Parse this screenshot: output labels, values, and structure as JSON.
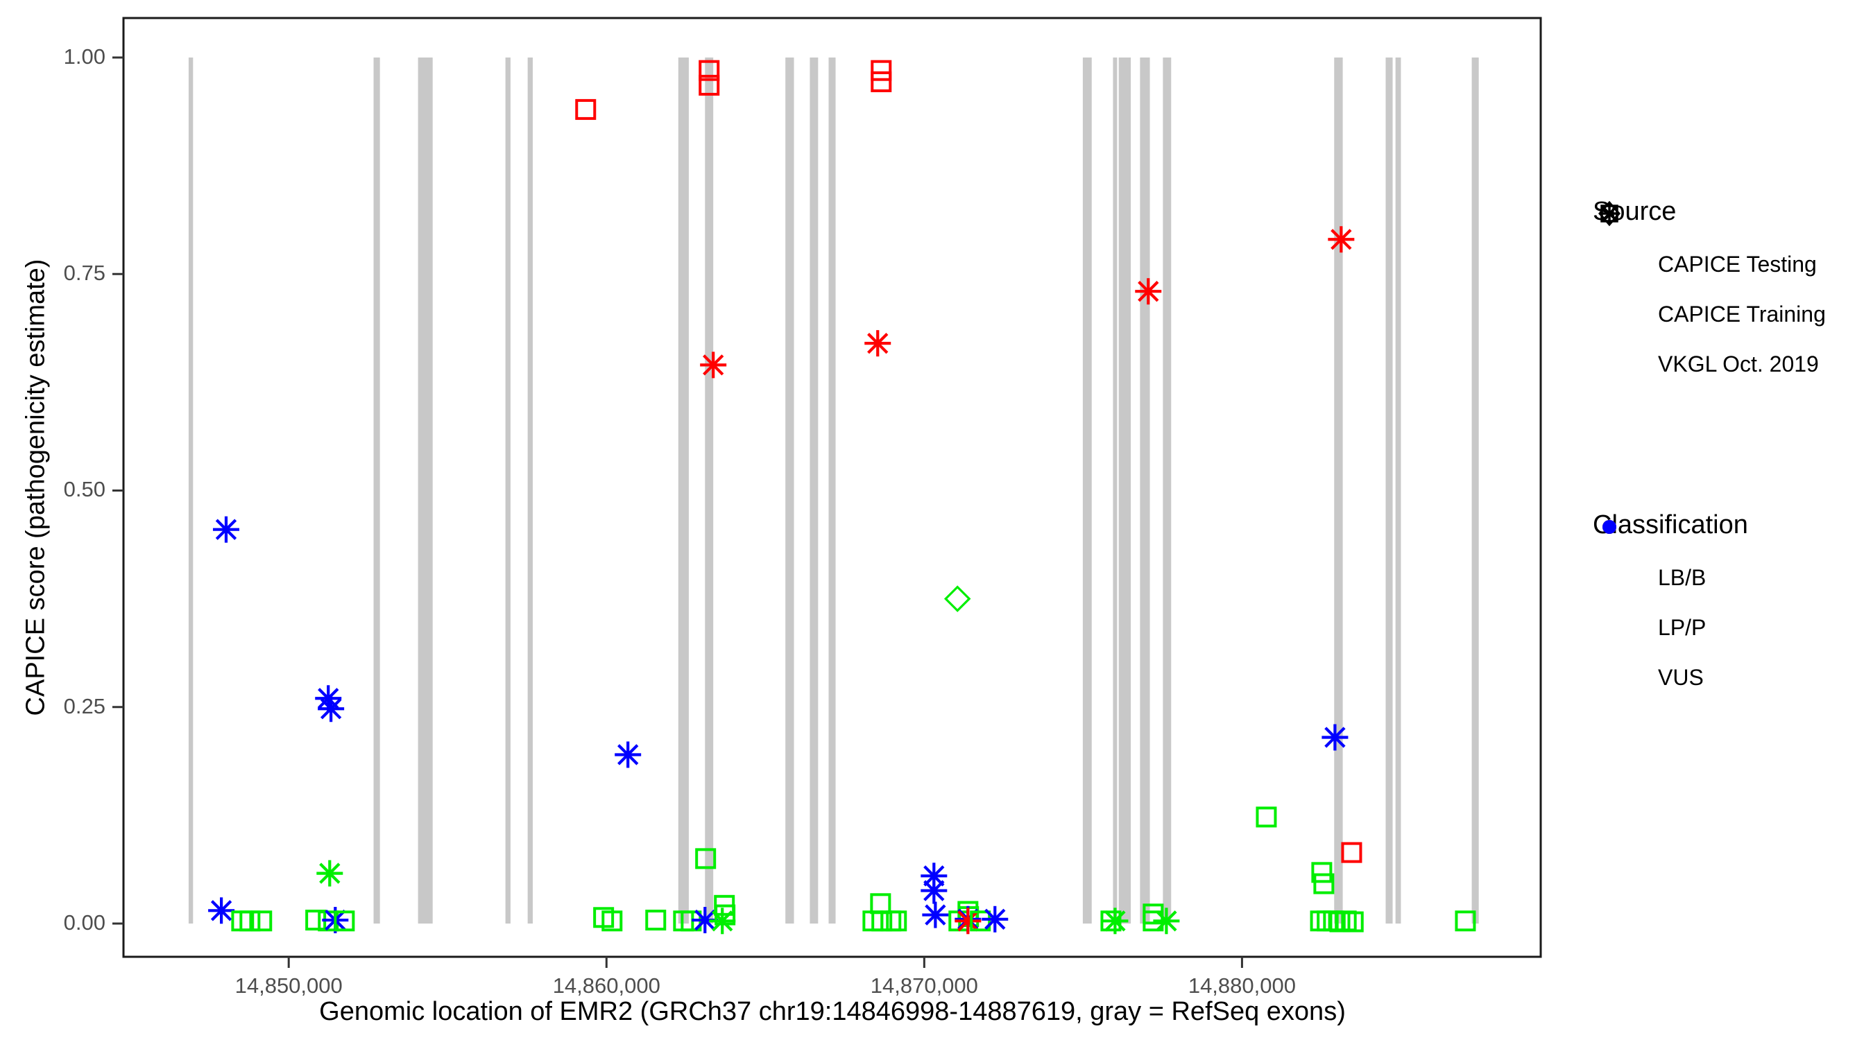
{
  "figure": {
    "x_axis_title": "Genomic location of EMR2 (GRCh37 chr19:14846998-14887619, gray = RefSeq exons)",
    "y_axis_title": "CAPICE score (pathogenicity estimate)"
  },
  "legend_source": {
    "title": "Source",
    "items": [
      {
        "glyph": "diamond-icon",
        "label": "CAPICE Testing"
      },
      {
        "glyph": "square-icon",
        "label": "CAPICE Training"
      },
      {
        "glyph": "asterisk-icon",
        "label": "VKGL Oct. 2019"
      }
    ]
  },
  "legend_classification": {
    "title": "Classification",
    "items": [
      {
        "class": "LB/B",
        "label": "LB/B",
        "color": "#00ee00"
      },
      {
        "class": "LP/P",
        "label": "LP/P",
        "color": "#ff0000"
      },
      {
        "class": "VUS",
        "label": "VUS",
        "color": "#0000ff"
      }
    ]
  },
  "colors": {
    "LB/B": "#00ee00",
    "LP/P": "#ff0000",
    "VUS": "#0000ff",
    "exon": "#c8c8c8",
    "panel_border": "#1a1a1a",
    "tick_text": "#4d4d4d"
  },
  "chart_data": {
    "type": "scatter",
    "title": "",
    "xlabel": "Genomic location of EMR2 (GRCh37 chr19:14846998-14887619, gray = RefSeq exons)",
    "ylabel": "CAPICE score (pathogenicity estimate)",
    "x_axis": {
      "range": [
        14844800,
        14889400
      ],
      "ticks": [
        14850000,
        14860000,
        14870000,
        14880000
      ],
      "tick_labels": [
        "14,850,000",
        "14,860,000",
        "14,870,000",
        "14,880,000"
      ]
    },
    "y_axis": {
      "range": [
        -0.0384,
        1.0456
      ],
      "ticks": [
        0.0,
        0.25,
        0.5,
        0.75,
        1.0
      ],
      "tick_labels": [
        "0.00",
        "0.25",
        "0.50",
        "0.75",
        "1.00"
      ]
    },
    "grid": "off",
    "legend_position": "right",
    "exons_bp": [
      [
        14846850,
        14846990
      ],
      [
        14852670,
        14852870
      ],
      [
        14854070,
        14854530
      ],
      [
        14856820,
        14856980
      ],
      [
        14857520,
        14857680
      ],
      [
        14862260,
        14862590
      ],
      [
        14863100,
        14863360
      ],
      [
        14865630,
        14865900
      ],
      [
        14866400,
        14866660
      ],
      [
        14866990,
        14867210
      ],
      [
        14874990,
        14875270
      ],
      [
        14875940,
        14876070
      ],
      [
        14876120,
        14876500
      ],
      [
        14876790,
        14877100
      ],
      [
        14877510,
        14877770
      ],
      [
        14882900,
        14883170
      ],
      [
        14884520,
        14884740
      ],
      [
        14884830,
        14885000
      ],
      [
        14887230,
        14887450
      ]
    ],
    "exon_span_score": [
      0,
      1
    ],
    "points": [
      {
        "bp": 14847880,
        "score": 0.015,
        "source": "vkgl",
        "class": "VUS"
      },
      {
        "bp": 14848030,
        "score": 0.455,
        "source": "vkgl",
        "class": "VUS"
      },
      {
        "bp": 14848520,
        "score": 0.003,
        "source": "training",
        "class": "LB/B"
      },
      {
        "bp": 14848780,
        "score": 0.003,
        "source": "training",
        "class": "LB/B"
      },
      {
        "bp": 14849150,
        "score": 0.003,
        "source": "training",
        "class": "LB/B"
      },
      {
        "bp": 14850850,
        "score": 0.004,
        "source": "training",
        "class": "LB/B"
      },
      {
        "bp": 14851245,
        "score": 0.26,
        "source": "vkgl",
        "class": "VUS"
      },
      {
        "bp": 14851330,
        "score": 0.248,
        "source": "vkgl",
        "class": "VUS"
      },
      {
        "bp": 14851290,
        "score": 0.058,
        "source": "vkgl",
        "class": "LB/B"
      },
      {
        "bp": 14851245,
        "score": 0.003,
        "source": "training",
        "class": "LB/B"
      },
      {
        "bp": 14851465,
        "score": 0.004,
        "source": "vkgl",
        "class": "VUS"
      },
      {
        "bp": 14851750,
        "score": 0.003,
        "source": "training",
        "class": "LB/B"
      },
      {
        "bp": 14859345,
        "score": 0.94,
        "source": "training",
        "class": "LP/P"
      },
      {
        "bp": 14859910,
        "score": 0.007,
        "source": "training",
        "class": "LB/B"
      },
      {
        "bp": 14860175,
        "score": 0.003,
        "source": "training",
        "class": "LB/B"
      },
      {
        "bp": 14860675,
        "score": 0.195,
        "source": "vkgl",
        "class": "VUS"
      },
      {
        "bp": 14861550,
        "score": 0.004,
        "source": "training",
        "class": "LB/B"
      },
      {
        "bp": 14862425,
        "score": 0.003,
        "source": "training",
        "class": "LB/B"
      },
      {
        "bp": 14862665,
        "score": 0.003,
        "source": "training",
        "class": "LB/B"
      },
      {
        "bp": 14863100,
        "score": 0.004,
        "source": "vkgl",
        "class": "VUS"
      },
      {
        "bp": 14863120,
        "score": 0.075,
        "source": "training",
        "class": "LB/B"
      },
      {
        "bp": 14863230,
        "score": 0.985,
        "source": "training",
        "class": "LP/P"
      },
      {
        "bp": 14863230,
        "score": 0.968,
        "source": "training",
        "class": "LP/P"
      },
      {
        "bp": 14863360,
        "score": 0.645,
        "source": "vkgl",
        "class": "LP/P"
      },
      {
        "bp": 14863645,
        "score": 0.003,
        "source": "vkgl",
        "class": "LB/B"
      },
      {
        "bp": 14863710,
        "score": 0.021,
        "source": "training",
        "class": "LB/B"
      },
      {
        "bp": 14863730,
        "score": 0.01,
        "source": "training",
        "class": "LB/B"
      },
      {
        "bp": 14868535,
        "score": 0.67,
        "source": "vkgl",
        "class": "LP/P"
      },
      {
        "bp": 14868645,
        "score": 0.985,
        "source": "training",
        "class": "LP/P"
      },
      {
        "bp": 14868645,
        "score": 0.972,
        "source": "training",
        "class": "LP/P"
      },
      {
        "bp": 14868385,
        "score": 0.003,
        "source": "training",
        "class": "LB/B"
      },
      {
        "bp": 14868625,
        "score": 0.023,
        "source": "training",
        "class": "LB/B"
      },
      {
        "bp": 14868665,
        "score": 0.003,
        "source": "training",
        "class": "LB/B"
      },
      {
        "bp": 14868950,
        "score": 0.003,
        "source": "training",
        "class": "LB/B"
      },
      {
        "bp": 14869125,
        "score": 0.003,
        "source": "training",
        "class": "LB/B"
      },
      {
        "bp": 14870305,
        "score": 0.055,
        "source": "vkgl",
        "class": "VUS"
      },
      {
        "bp": 14870305,
        "score": 0.038,
        "source": "vkgl",
        "class": "VUS"
      },
      {
        "bp": 14870350,
        "score": 0.01,
        "source": "vkgl",
        "class": "VUS"
      },
      {
        "bp": 14871090,
        "score": 0.003,
        "source": "training",
        "class": "LB/B"
      },
      {
        "bp": 14871375,
        "score": 0.014,
        "source": "training",
        "class": "LB/B"
      },
      {
        "bp": 14871395,
        "score": 0.008,
        "source": "training",
        "class": "LB/B"
      },
      {
        "bp": 14871375,
        "score": 0.005,
        "source": "vkgl",
        "class": "VUS"
      },
      {
        "bp": 14871375,
        "score": 0.003,
        "source": "vkgl",
        "class": "LP/P"
      },
      {
        "bp": 14871765,
        "score": 0.003,
        "source": "training",
        "class": "LB/B"
      },
      {
        "bp": 14871045,
        "score": 0.375,
        "source": "testing",
        "class": "LB/B"
      },
      {
        "bp": 14872225,
        "score": 0.005,
        "source": "vkgl",
        "class": "VUS"
      },
      {
        "bp": 14875875,
        "score": 0.003,
        "source": "training",
        "class": "LB/B"
      },
      {
        "bp": 14876005,
        "score": 0.003,
        "source": "vkgl",
        "class": "LB/B"
      },
      {
        "bp": 14877205,
        "score": 0.011,
        "source": "training",
        "class": "LB/B"
      },
      {
        "bp": 14877205,
        "score": 0.003,
        "source": "training",
        "class": "LB/B"
      },
      {
        "bp": 14877620,
        "score": 0.003,
        "source": "vkgl",
        "class": "LB/B"
      },
      {
        "bp": 14877050,
        "score": 0.73,
        "source": "vkgl",
        "class": "LP/P"
      },
      {
        "bp": 14880765,
        "score": 0.123,
        "source": "training",
        "class": "LB/B"
      },
      {
        "bp": 14882510,
        "score": 0.059,
        "source": "training",
        "class": "LB/B"
      },
      {
        "bp": 14882575,
        "score": 0.046,
        "source": "training",
        "class": "LB/B"
      },
      {
        "bp": 14882470,
        "score": 0.003,
        "source": "training",
        "class": "LB/B"
      },
      {
        "bp": 14882680,
        "score": 0.003,
        "source": "training",
        "class": "LB/B"
      },
      {
        "bp": 14882880,
        "score": 0.003,
        "source": "training",
        "class": "LB/B"
      },
      {
        "bp": 14883080,
        "score": 0.002,
        "source": "training",
        "class": "LB/B"
      },
      {
        "bp": 14883280,
        "score": 0.003,
        "source": "training",
        "class": "LB/B"
      },
      {
        "bp": 14883500,
        "score": 0.002,
        "source": "training",
        "class": "LB/B"
      },
      {
        "bp": 14882925,
        "score": 0.215,
        "source": "vkgl",
        "class": "VUS"
      },
      {
        "bp": 14883120,
        "score": 0.79,
        "source": "vkgl",
        "class": "LP/P"
      },
      {
        "bp": 14883450,
        "score": 0.082,
        "source": "training",
        "class": "LP/P"
      },
      {
        "bp": 14887030,
        "score": 0.003,
        "source": "training",
        "class": "LB/B"
      }
    ]
  }
}
